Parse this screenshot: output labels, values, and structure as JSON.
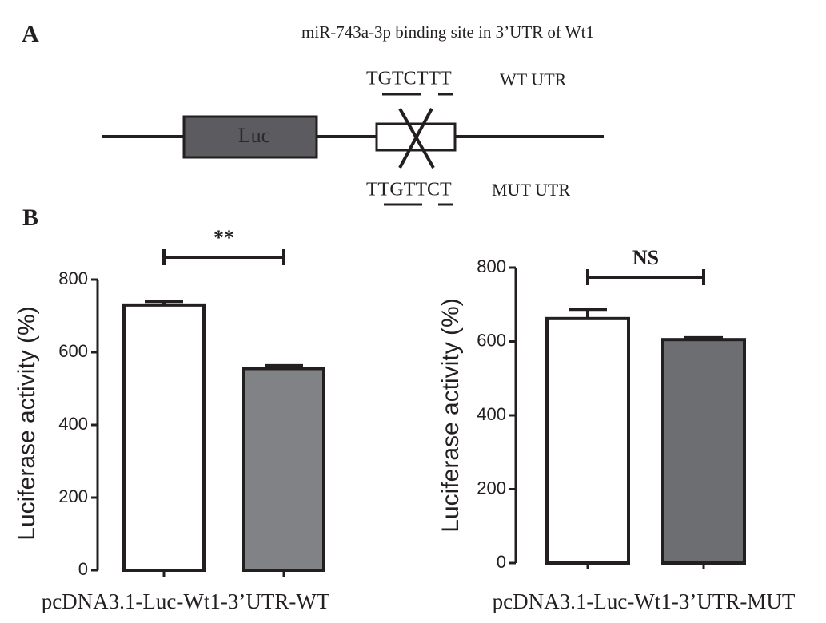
{
  "panel_a": {
    "panel_label": "A",
    "title": "miR-743a-3p binding site in 3’UTR of Wt1",
    "luc_label": "Luc",
    "wt_sequence": "TGTCTTT",
    "wt_label": "WT UTR",
    "mut_sequence": "TTGTTCT",
    "mut_label": "MUT UTR"
  },
  "panel_b_label": "B",
  "chart_data": [
    {
      "type": "bar",
      "ylabel": "Luciferase activity (%)",
      "xlabel": "pcDNA3.1-Luc-Wt1-3’UTR-WT",
      "annotation": "**",
      "categories": [
        null,
        null
      ],
      "values": [
        730,
        555
      ],
      "errors": [
        10,
        8
      ],
      "colors": [
        "#ffffff",
        "#808285"
      ],
      "ylim": [
        0,
        800
      ],
      "yticks": [
        0,
        200,
        400,
        600,
        800
      ]
    },
    {
      "type": "bar",
      "ylabel": "Luciferase activity (%)",
      "xlabel": "pcDNA3.1-Luc-Wt1-3’UTR-MUT",
      "annotation": "NS",
      "categories": [
        null,
        null
      ],
      "values": [
        662,
        605
      ],
      "errors": [
        25,
        5
      ],
      "colors": [
        "#ffffff",
        "#6d6e71"
      ],
      "ylim": [
        0,
        800
      ],
      "yticks": [
        0,
        200,
        400,
        600,
        800
      ]
    }
  ]
}
